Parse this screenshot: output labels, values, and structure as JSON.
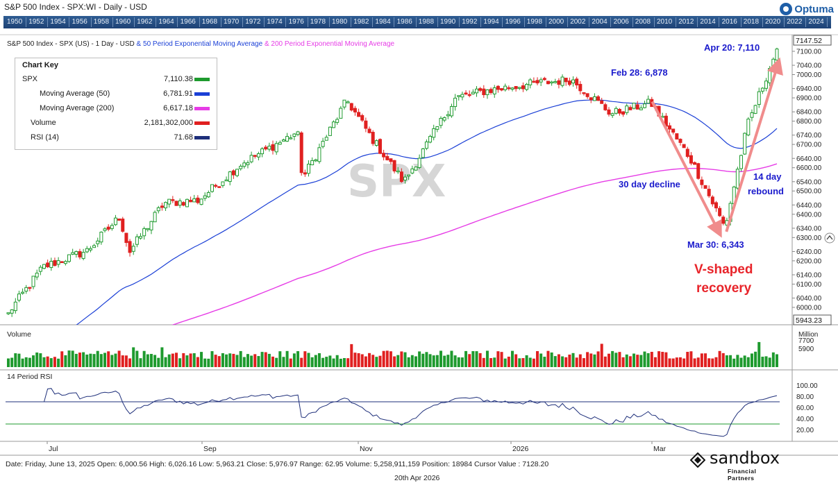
{
  "window": {
    "title": "S&P 500 Index - SPX:WI - Daily - USD",
    "brand": "Optuma"
  },
  "timeline_years": [
    "1950",
    "1952",
    "1954",
    "1956",
    "1958",
    "1960",
    "1962",
    "1964",
    "1966",
    "1968",
    "1970",
    "1972",
    "1974",
    "1976",
    "1978",
    "1980",
    "1982",
    "1984",
    "1986",
    "1988",
    "1990",
    "1992",
    "1994",
    "1996",
    "1998",
    "2000",
    "2002",
    "2004",
    "2006",
    "2008",
    "2010",
    "2012",
    "2014",
    "2016",
    "2018",
    "2020",
    "2022",
    "2024"
  ],
  "chart_header": {
    "prefix": "S&P 500 Index - SPX (US) - 1 Day - USD",
    "ema50_text": " & 50 Period Exponential Moving Average",
    "ema200_text": " & 200 Period Exponential Moving Average"
  },
  "chart_key": {
    "title": "Chart Key",
    "rows": [
      {
        "name": "SPX",
        "value": "7,110.38",
        "color": "#1e9a2e"
      },
      {
        "name": "Moving Average (50)",
        "value": "6,781.91",
        "color": "#1a3fd6"
      },
      {
        "name": "Moving Average (200)",
        "value": "6,617.18",
        "color": "#e63ce6"
      },
      {
        "name": "Volume",
        "value": "2,181,302,000",
        "color": "#e02020"
      },
      {
        "name": "RSI (14)",
        "value": "71.68",
        "color": "#1e2f7a"
      }
    ]
  },
  "watermark": "SPX",
  "annotations": {
    "feb28": "Feb 28: 6,878",
    "apr20": "Apr 20: 7,110",
    "mar30": "Mar 30: 6,343",
    "decline": "30 day decline",
    "rebound_1": "14 day",
    "rebound_2": "rebound",
    "vshape_1": "V-shaped",
    "vshape_2": "recovery"
  },
  "price_axis": {
    "labels": [
      "7100.00",
      "7040.00",
      "7000.00",
      "6940.00",
      "6900.00",
      "6840.00",
      "6800.00",
      "6740.00",
      "6700.00",
      "6640.00",
      "6600.00",
      "6540.00",
      "6500.00",
      "6440.00",
      "6400.00",
      "6340.00",
      "6300.00",
      "6240.00",
      "6200.00",
      "6140.00",
      "6100.00",
      "6040.00",
      "6000.00"
    ],
    "top_box": "7147.52",
    "bottom_box": "5943.23"
  },
  "volume_panel": {
    "label": "Volume",
    "axis_title": "Million",
    "ticks": [
      "7700",
      "5900"
    ]
  },
  "rsi_panel": {
    "label": "14 Period RSI",
    "ticks": [
      "100.00",
      "80.00",
      "60.00",
      "40.00",
      "20.00"
    ]
  },
  "x_axis": {
    "labels": [
      "Jul",
      "Sep",
      "Nov",
      "2026",
      "Mar"
    ]
  },
  "footer": {
    "status": "Date: Friday, June 13, 2025 Open: 6,000.56 High: 6,026.16 Low: 5,963.21 Close: 5,976.97 Range: 62.95 Volume: 5,258,911,159 Position: 18984 Cursor Value : 7128.20",
    "date": "20th Apr 2026"
  },
  "sandbox_logo": {
    "name": "sandbox",
    "sub": "Financial Partners"
  },
  "colors": {
    "up": "#1e9a2e",
    "down": "#e02020",
    "ema50": "#1a3fd6",
    "ema200": "#e63ce6",
    "rsi": "#1e2f7a",
    "annotation_blue": "#1a1acc",
    "annotation_red": "#e8242a",
    "arrow": "#f08c8c"
  },
  "chart_data": {
    "type": "candlestick",
    "title": "S&P 500 Index - SPX (US) - 1 Day - USD",
    "ylim": [
      5943.23,
      7147.52
    ],
    "close_path": [
      {
        "x": "2025-06-13",
        "y": 5977
      },
      {
        "x": "2025-06-27",
        "y": 6173
      },
      {
        "x": "2025-07-15",
        "y": 6244
      },
      {
        "x": "2025-07-28",
        "y": 6389
      },
      {
        "x": "2025-08-01",
        "y": 6238
      },
      {
        "x": "2025-08-15",
        "y": 6449
      },
      {
        "x": "2025-08-29",
        "y": 6460
      },
      {
        "x": "2025-09-15",
        "y": 6615
      },
      {
        "x": "2025-10-08",
        "y": 6753
      },
      {
        "x": "2025-10-10",
        "y": 6552
      },
      {
        "x": "2025-10-28",
        "y": 6890
      },
      {
        "x": "2025-11-07",
        "y": 6728
      },
      {
        "x": "2025-11-20",
        "y": 6538
      },
      {
        "x": "2025-12-11",
        "y": 6901
      },
      {
        "x": "2025-12-24",
        "y": 6932
      },
      {
        "x": "2026-01-13",
        "y": 6963
      },
      {
        "x": "2026-01-27",
        "y": 6978
      },
      {
        "x": "2026-02-12",
        "y": 6832
      },
      {
        "x": "2026-02-28",
        "y": 6878
      },
      {
        "x": "2026-03-16",
        "y": 6640
      },
      {
        "x": "2026-03-30",
        "y": 6343
      },
      {
        "x": "2026-04-08",
        "y": 6780
      },
      {
        "x": "2026-04-20",
        "y": 7110
      }
    ],
    "series": [
      {
        "name": "Moving Average (50)",
        "last": 6781.91
      },
      {
        "name": "Moving Average (200)",
        "last": 6617.18
      },
      {
        "name": "Volume",
        "last": 2181302000
      },
      {
        "name": "RSI (14)",
        "last": 71.68
      }
    ],
    "annotations": [
      {
        "date": "2026-02-28",
        "value": 6878,
        "text": "Feb 28: 6,878"
      },
      {
        "date": "2026-03-30",
        "value": 6343,
        "text": "Mar 30: 6,343"
      },
      {
        "date": "2026-04-20",
        "value": 7110,
        "text": "Apr 20: 7,110"
      }
    ],
    "rsi_levels": [
      70,
      30
    ],
    "grid": false,
    "legend": "top-left"
  }
}
